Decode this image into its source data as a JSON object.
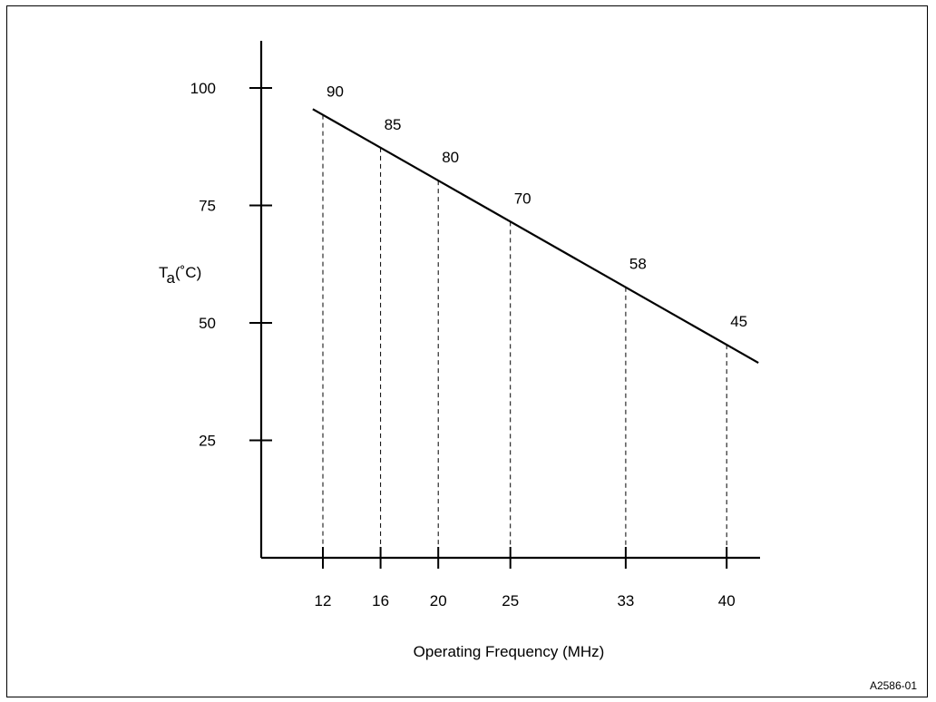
{
  "chart_data": {
    "type": "line",
    "xlabel": "Operating Frequency (MHz)",
    "ylabel": {
      "main": "T",
      "sub": "a",
      "unit": "(˚C)"
    },
    "yticks": [
      25,
      50,
      75,
      100
    ],
    "xticks": [
      12,
      16,
      20,
      25,
      33,
      40
    ],
    "ylim": [
      0,
      110
    ],
    "grid": false,
    "line": {
      "x": [
        11.3,
        42.2
      ],
      "y": [
        95.5,
        41.5
      ]
    },
    "points": [
      {
        "x": 12,
        "label": "90"
      },
      {
        "x": 16,
        "label": "85"
      },
      {
        "x": 20,
        "label": "80"
      },
      {
        "x": 25,
        "label": "70"
      },
      {
        "x": 33,
        "label": "58"
      },
      {
        "x": 40,
        "label": "45"
      }
    ]
  },
  "figure_id": "A2586-01",
  "colors": {
    "line": "#000000",
    "background": "#ffffff"
  }
}
